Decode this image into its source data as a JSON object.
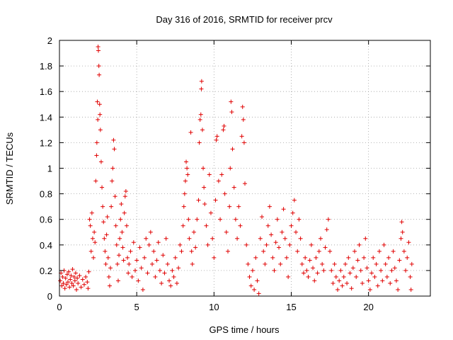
{
  "chart_data": {
    "type": "scatter",
    "title": "Day 316 of 2016, SRMTID for receiver prcv",
    "xlabel": "GPS time / hours",
    "ylabel": "SRMTID / TECUs",
    "xlim": [
      0,
      24
    ],
    "ylim": [
      0,
      2
    ],
    "xticks": [
      0,
      5,
      10,
      15,
      20
    ],
    "xtick_labels": [
      "0",
      "5",
      "10",
      "15",
      "20"
    ],
    "yticks": [
      0,
      0.2,
      0.4,
      0.6,
      0.8,
      1,
      1.2,
      1.4,
      1.6,
      1.8,
      2
    ],
    "ytick_labels": [
      "0",
      "0.2",
      "0.4",
      "0.6",
      "0.8",
      "1",
      "1.2",
      "1.4",
      "1.6",
      "1.8",
      "2"
    ],
    "grid": true,
    "marker": "+",
    "series": [
      {
        "name": "SRMTID",
        "color": "#e00000",
        "points": [
          [
            0.05,
            0.12
          ],
          [
            0.1,
            0.18
          ],
          [
            0.15,
            0.08
          ],
          [
            0.2,
            0.15
          ],
          [
            0.25,
            0.1
          ],
          [
            0.3,
            0.2
          ],
          [
            0.35,
            0.06
          ],
          [
            0.4,
            0.14
          ],
          [
            0.45,
            0.09
          ],
          [
            0.5,
            0.17
          ],
          [
            0.55,
            0.11
          ],
          [
            0.6,
            0.19
          ],
          [
            0.65,
            0.07
          ],
          [
            0.7,
            0.13
          ],
          [
            0.75,
            0.16
          ],
          [
            0.8,
            0.1
          ],
          [
            0.85,
            0.21
          ],
          [
            0.9,
            0.08
          ],
          [
            0.95,
            0.15
          ],
          [
            1.0,
            0.12
          ],
          [
            1.05,
            0.18
          ],
          [
            1.1,
            0.05
          ],
          [
            1.15,
            0.14
          ],
          [
            1.2,
            0.1
          ],
          [
            1.3,
            0.16
          ],
          [
            1.4,
            0.07
          ],
          [
            1.5,
            0.13
          ],
          [
            1.6,
            0.09
          ],
          [
            1.7,
            0.15
          ],
          [
            1.8,
            0.11
          ],
          [
            1.85,
            0.06
          ],
          [
            1.9,
            0.19
          ],
          [
            1.95,
            0.6
          ],
          [
            2.0,
            0.55
          ],
          [
            2.05,
            0.35
          ],
          [
            2.1,
            0.65
          ],
          [
            2.15,
            0.45
          ],
          [
            2.2,
            0.3
          ],
          [
            2.25,
            0.5
          ],
          [
            2.3,
            0.42
          ],
          [
            2.35,
            0.9
          ],
          [
            2.4,
            1.1
          ],
          [
            2.42,
            1.2
          ],
          [
            2.45,
            1.52
          ],
          [
            2.48,
            1.38
          ],
          [
            2.5,
            1.95
          ],
          [
            2.52,
            1.92
          ],
          [
            2.55,
            1.8
          ],
          [
            2.57,
            1.73
          ],
          [
            2.6,
            1.5
          ],
          [
            2.62,
            1.42
          ],
          [
            2.65,
            1.3
          ],
          [
            2.7,
            1.05
          ],
          [
            2.75,
            0.85
          ],
          [
            2.8,
            0.7
          ],
          [
            2.85,
            0.58
          ],
          [
            2.9,
            0.45
          ],
          [
            2.95,
            0.35
          ],
          [
            3.0,
            0.25
          ],
          [
            3.05,
            0.48
          ],
          [
            3.1,
            0.62
          ],
          [
            3.15,
            0.3
          ],
          [
            3.2,
            0.15
          ],
          [
            3.25,
            0.08
          ],
          [
            3.3,
            0.22
          ],
          [
            3.35,
            0.7
          ],
          [
            3.4,
            0.9
          ],
          [
            3.45,
            1.0
          ],
          [
            3.5,
            1.22
          ],
          [
            3.55,
            1.15
          ],
          [
            3.6,
            0.78
          ],
          [
            3.65,
            0.55
          ],
          [
            3.7,
            0.4
          ],
          [
            3.75,
            0.25
          ],
          [
            3.8,
            0.12
          ],
          [
            3.85,
            0.32
          ],
          [
            3.9,
            0.45
          ],
          [
            3.95,
            0.6
          ],
          [
            4.0,
            0.72
          ],
          [
            4.05,
            0.5
          ],
          [
            4.1,
            0.38
          ],
          [
            4.15,
            0.28
          ],
          [
            4.2,
            0.65
          ],
          [
            4.25,
            0.78
          ],
          [
            4.3,
            0.82
          ],
          [
            4.35,
            0.55
          ],
          [
            4.4,
            0.3
          ],
          [
            4.45,
            0.18
          ],
          [
            4.5,
            0.25
          ],
          [
            4.6,
            0.35
          ],
          [
            4.7,
            0.15
          ],
          [
            4.8,
            0.42
          ],
          [
            4.9,
            0.2
          ],
          [
            5.0,
            0.28
          ],
          [
            5.1,
            0.12
          ],
          [
            5.2,
            0.38
          ],
          [
            5.3,
            0.22
          ],
          [
            5.4,
            0.05
          ],
          [
            5.5,
            0.3
          ],
          [
            5.6,
            0.45
          ],
          [
            5.7,
            0.18
          ],
          [
            5.8,
            0.4
          ],
          [
            5.9,
            0.5
          ],
          [
            6.0,
            0.25
          ],
          [
            6.1,
            0.35
          ],
          [
            6.2,
            0.15
          ],
          [
            6.3,
            0.28
          ],
          [
            6.4,
            0.42
          ],
          [
            6.5,
            0.2
          ],
          [
            6.6,
            0.1
          ],
          [
            6.7,
            0.32
          ],
          [
            6.8,
            0.18
          ],
          [
            6.9,
            0.45
          ],
          [
            7.0,
            0.25
          ],
          [
            7.1,
            0.12
          ],
          [
            7.2,
            0.08
          ],
          [
            7.3,
            0.2
          ],
          [
            7.4,
            0.15
          ],
          [
            7.5,
            0.3
          ],
          [
            7.6,
            0.1
          ],
          [
            7.7,
            0.22
          ],
          [
            7.8,
            0.4
          ],
          [
            7.9,
            0.35
          ],
          [
            8.0,
            0.55
          ],
          [
            8.05,
            0.7
          ],
          [
            8.1,
            0.8
          ],
          [
            8.15,
            0.9
          ],
          [
            8.2,
            1.05
          ],
          [
            8.25,
            1.0
          ],
          [
            8.3,
            0.95
          ],
          [
            8.35,
            0.6
          ],
          [
            8.4,
            0.45
          ],
          [
            8.5,
            1.28
          ],
          [
            8.55,
            0.35
          ],
          [
            8.6,
            0.25
          ],
          [
            8.7,
            0.5
          ],
          [
            8.8,
            0.38
          ],
          [
            8.9,
            0.6
          ],
          [
            9.0,
            0.75
          ],
          [
            9.05,
            1.2
          ],
          [
            9.1,
            1.38
          ],
          [
            9.15,
            1.42
          ],
          [
            9.18,
            1.62
          ],
          [
            9.2,
            1.68
          ],
          [
            9.25,
            1.3
          ],
          [
            9.3,
            1.0
          ],
          [
            9.35,
            0.85
          ],
          [
            9.4,
            0.72
          ],
          [
            9.5,
            0.55
          ],
          [
            9.6,
            0.4
          ],
          [
            9.7,
            0.95
          ],
          [
            9.8,
            0.65
          ],
          [
            9.9,
            0.45
          ],
          [
            10.0,
            0.3
          ],
          [
            10.1,
            0.75
          ],
          [
            10.15,
            1.22
          ],
          [
            10.2,
            1.25
          ],
          [
            10.3,
            0.9
          ],
          [
            10.4,
            0.6
          ],
          [
            10.5,
            0.95
          ],
          [
            10.6,
            1.3
          ],
          [
            10.65,
            1.33
          ],
          [
            10.7,
            0.8
          ],
          [
            10.8,
            0.5
          ],
          [
            10.9,
            0.35
          ],
          [
            11.0,
            0.7
          ],
          [
            11.05,
            1.0
          ],
          [
            11.1,
            1.52
          ],
          [
            11.15,
            1.44
          ],
          [
            11.2,
            1.15
          ],
          [
            11.3,
            0.85
          ],
          [
            11.4,
            0.6
          ],
          [
            11.5,
            0.45
          ],
          [
            11.6,
            0.7
          ],
          [
            11.7,
            0.55
          ],
          [
            11.8,
            1.25
          ],
          [
            11.85,
            1.48
          ],
          [
            11.9,
            1.38
          ],
          [
            11.95,
            1.2
          ],
          [
            12.0,
            0.88
          ],
          [
            12.1,
            0.4
          ],
          [
            12.2,
            0.25
          ],
          [
            12.3,
            0.15
          ],
          [
            12.4,
            0.08
          ],
          [
            12.5,
            0.2
          ],
          [
            12.6,
            0.05
          ],
          [
            12.7,
            0.3
          ],
          [
            12.8,
            0.12
          ],
          [
            12.9,
            0.02
          ],
          [
            13.0,
            0.45
          ],
          [
            13.1,
            0.62
          ],
          [
            13.2,
            0.35
          ],
          [
            13.3,
            0.25
          ],
          [
            13.4,
            0.4
          ],
          [
            13.5,
            0.55
          ],
          [
            13.6,
            0.7
          ],
          [
            13.7,
            0.48
          ],
          [
            13.8,
            0.3
          ],
          [
            13.9,
            0.2
          ],
          [
            14.0,
            0.42
          ],
          [
            14.1,
            0.6
          ],
          [
            14.2,
            0.38
          ],
          [
            14.3,
            0.25
          ],
          [
            14.4,
            0.5
          ],
          [
            14.5,
            0.68
          ],
          [
            14.6,
            0.45
          ],
          [
            14.7,
            0.3
          ],
          [
            14.8,
            0.15
          ],
          [
            14.9,
            0.4
          ],
          [
            15.0,
            0.55
          ],
          [
            15.1,
            0.65
          ],
          [
            15.2,
            0.75
          ],
          [
            15.3,
            0.5
          ],
          [
            15.4,
            0.35
          ],
          [
            15.5,
            0.6
          ],
          [
            15.6,
            0.45
          ],
          [
            15.7,
            0.25
          ],
          [
            15.8,
            0.18
          ],
          [
            15.9,
            0.3
          ],
          [
            16.0,
            0.2
          ],
          [
            16.1,
            0.15
          ],
          [
            16.2,
            0.28
          ],
          [
            16.3,
            0.4
          ],
          [
            16.4,
            0.22
          ],
          [
            16.5,
            0.12
          ],
          [
            16.6,
            0.3
          ],
          [
            16.7,
            0.18
          ],
          [
            16.8,
            0.35
          ],
          [
            16.9,
            0.45
          ],
          [
            17.0,
            0.25
          ],
          [
            17.1,
            0.2
          ],
          [
            17.2,
            0.38
          ],
          [
            17.3,
            0.52
          ],
          [
            17.4,
            0.6
          ],
          [
            17.5,
            0.35
          ],
          [
            17.6,
            0.2
          ],
          [
            17.7,
            0.1
          ],
          [
            17.8,
            0.25
          ],
          [
            17.9,
            0.15
          ],
          [
            18.0,
            0.05
          ],
          [
            18.1,
            0.12
          ],
          [
            18.2,
            0.2
          ],
          [
            18.3,
            0.08
          ],
          [
            18.4,
            0.15
          ],
          [
            18.5,
            0.25
          ],
          [
            18.6,
            0.1
          ],
          [
            18.7,
            0.3
          ],
          [
            18.8,
            0.18
          ],
          [
            18.9,
            0.06
          ],
          [
            19.0,
            0.22
          ],
          [
            19.1,
            0.35
          ],
          [
            19.2,
            0.15
          ],
          [
            19.3,
            0.28
          ],
          [
            19.4,
            0.4
          ],
          [
            19.5,
            0.2
          ],
          [
            19.6,
            0.1
          ],
          [
            19.7,
            0.3
          ],
          [
            19.8,
            0.45
          ],
          [
            19.9,
            0.22
          ],
          [
            20.0,
            0.12
          ],
          [
            20.1,
            0.05
          ],
          [
            20.2,
            0.18
          ],
          [
            20.3,
            0.3
          ],
          [
            20.4,
            0.15
          ],
          [
            20.5,
            0.25
          ],
          [
            20.6,
            0.08
          ],
          [
            20.7,
            0.35
          ],
          [
            20.8,
            0.2
          ],
          [
            20.9,
            0.12
          ],
          [
            21.0,
            0.4
          ],
          [
            21.1,
            0.25
          ],
          [
            21.2,
            0.15
          ],
          [
            21.3,
            0.3
          ],
          [
            21.4,
            0.1
          ],
          [
            21.5,
            0.2
          ],
          [
            21.6,
            0.35
          ],
          [
            21.7,
            0.22
          ],
          [
            21.8,
            0.12
          ],
          [
            21.9,
            0.05
          ],
          [
            22.0,
            0.28
          ],
          [
            22.1,
            0.45
          ],
          [
            22.15,
            0.58
          ],
          [
            22.2,
            0.5
          ],
          [
            22.3,
            0.35
          ],
          [
            22.4,
            0.2
          ],
          [
            22.5,
            0.3
          ],
          [
            22.6,
            0.42
          ],
          [
            22.7,
            0.15
          ],
          [
            22.75,
            0.05
          ],
          [
            22.8,
            0.25
          ]
        ]
      }
    ]
  }
}
